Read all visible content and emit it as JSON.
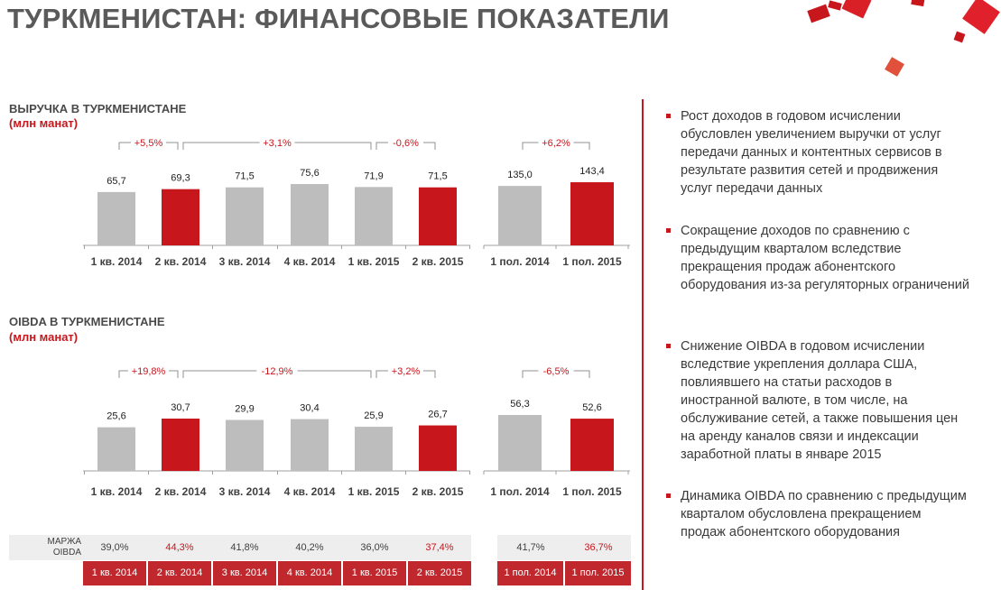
{
  "title": "ТУРКМЕНИСТАН: ФИНАНСОВЫЕ ПОКАЗАТЕЛИ",
  "colors": {
    "accent": "#c8161d",
    "grey_bar": "#bdbdbd",
    "text": "#404040"
  },
  "charts": [
    {
      "title": "ВЫРУЧКА В ТУРКМЕНИСТАНЕ",
      "unit": "(млн манат)"
    },
    {
      "title": "OIBDA В ТУРКМЕНИСТАНЕ",
      "unit": "(млн манат)"
    }
  ],
  "chart_data": [
    {
      "type": "bar",
      "title": "ВЫРУЧКА В ТУРКМЕНИСТАНЕ",
      "subtitle": "(млн манат)",
      "groups": [
        {
          "categories": [
            "1 кв. 2014",
            "2 кв. 2014",
            "3 кв. 2014",
            "4 кв. 2014",
            "1 кв. 2015",
            "2 кв. 2015"
          ],
          "values": [
            65.7,
            69.3,
            71.5,
            75.6,
            71.9,
            71.5
          ],
          "labels": [
            "65,7",
            "69,3",
            "71,5",
            "75,6",
            "71,9",
            "71,5"
          ],
          "highlight": [
            false,
            true,
            false,
            false,
            false,
            true
          ],
          "annotations": [
            {
              "text": "+5,5%",
              "from": 0,
              "to": 1
            },
            {
              "text": "+3,1%",
              "from": 1,
              "to": 4
            },
            {
              "text": "-0,6%",
              "from": 4,
              "to": 5
            }
          ]
        },
        {
          "categories": [
            "1 пол. 2014",
            "1 пол. 2015"
          ],
          "values": [
            135.0,
            143.4
          ],
          "labels": [
            "135,0",
            "143,4"
          ],
          "highlight": [
            false,
            true
          ],
          "annotations": [
            {
              "text": "+6,2%",
              "from": 0,
              "to": 1
            }
          ]
        }
      ]
    },
    {
      "type": "bar",
      "title": "OIBDA В ТУРКМЕНИСТАНЕ",
      "subtitle": "(млн манат)",
      "groups": [
        {
          "categories": [
            "1 кв. 2014",
            "2 кв. 2014",
            "3 кв. 2014",
            "4 кв. 2014",
            "1 кв. 2015",
            "2 кв. 2015"
          ],
          "values": [
            25.6,
            30.7,
            29.9,
            30.4,
            25.9,
            26.7
          ],
          "labels": [
            "25,6",
            "30,7",
            "29,9",
            "30,4",
            "25,9",
            "26,7"
          ],
          "highlight": [
            false,
            true,
            false,
            false,
            false,
            true
          ],
          "annotations": [
            {
              "text": "+19,8%",
              "from": 0,
              "to": 1
            },
            {
              "text": "-12,9%",
              "from": 1,
              "to": 4
            },
            {
              "text": "+3,2%",
              "from": 4,
              "to": 5
            }
          ]
        },
        {
          "categories": [
            "1 пол. 2014",
            "1 пол. 2015"
          ],
          "values": [
            56.3,
            52.6
          ],
          "labels": [
            "56,3",
            "52,6"
          ],
          "highlight": [
            false,
            true
          ],
          "annotations": [
            {
              "text": "-6,5%",
              "from": 0,
              "to": 1
            }
          ]
        }
      ]
    }
  ],
  "margin_table": {
    "label": "МАРЖА OIBDA",
    "cells": [
      "39,0%",
      "44,3%",
      "41,8%",
      "40,2%",
      "36,0%",
      "37,4%",
      "41,7%",
      "36,7%"
    ],
    "highlight": [
      false,
      true,
      false,
      false,
      false,
      true,
      false,
      true
    ],
    "periods": [
      "1 кв. 2014",
      "2 кв. 2014",
      "3 кв. 2014",
      "4 кв. 2014",
      "1 кв. 2015",
      "2 кв. 2015",
      "1 пол. 2014",
      "1 пол. 2015"
    ]
  },
  "bullets": [
    "Рост доходов в годовом исчислении обусловлен увеличением выручки от услуг передачи данных и контентных сервисов в результате развития сетей и продвижения услуг передачи данных",
    "Сокращение доходов по сравнению с предыдущим кварталом вследствие прекращения продаж абонентского оборудования из-за регуляторных ограничений",
    "Снижение OIBDA в годовом исчислении вследствие укрепления доллара США, повлиявшего на статьи расходов в иностранной валюте, в том числе, на обслуживание сетей, а также повышения цен на аренду каналов связи и индексации заработной платы  в январе 2015",
    "Динамика OIBDA по сравнению с предыдущим кварталом обусловлена прекращением продаж абонентского оборудования"
  ]
}
